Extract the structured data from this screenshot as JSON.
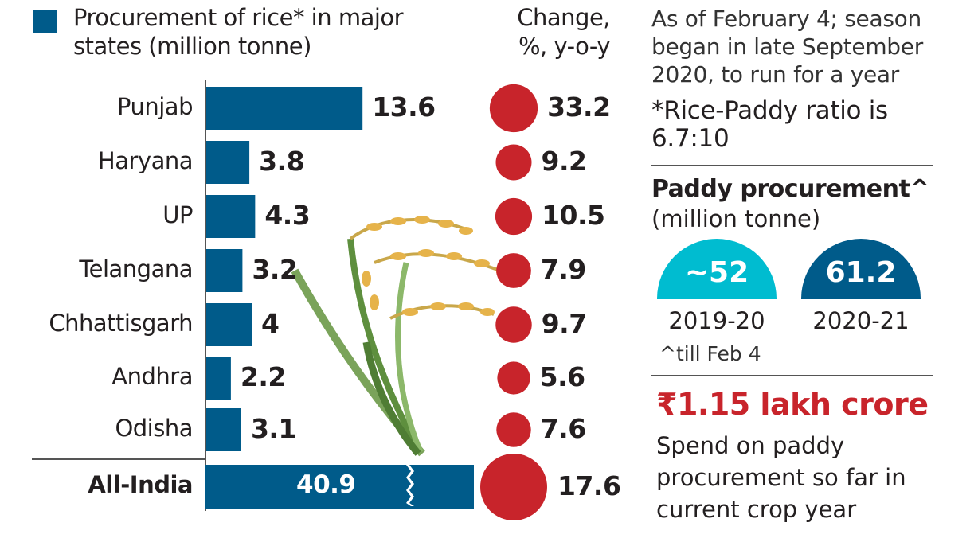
{
  "chart_data": {
    "type": "bar",
    "title": "Procurement of rice* in major states (million tonne)",
    "change_header": "Change, %, y-o-y",
    "categories": [
      "Punjab",
      "Haryana",
      "UP",
      "Telangana",
      "Chhattisgarh",
      "Andhra",
      "Odisha"
    ],
    "series": [
      {
        "name": "Procurement of rice* in major states (million tonne)",
        "values": [
          13.6,
          3.8,
          4.3,
          3.2,
          4,
          2.2,
          3.1
        ],
        "labels": [
          "13.6",
          "3.8",
          "4.3",
          "3.2",
          "4",
          "2.2",
          "3.1"
        ]
      },
      {
        "name": "Change, %, y-o-y",
        "values": [
          33.2,
          9.2,
          10.5,
          7.9,
          9.7,
          5.6,
          7.6
        ],
        "labels": [
          "33.2",
          "9.2",
          "10.5",
          "7.9",
          "9.7",
          "5.6",
          "7.6"
        ]
      }
    ],
    "total": {
      "label": "All-India",
      "value": 40.9,
      "value_label": "40.9",
      "change": 17.6,
      "change_label": "17.6",
      "axis_break": true
    },
    "colors": {
      "bar": "#005b8a",
      "circle": "#c8242b"
    }
  },
  "notes": {
    "season": "As of February 4; season began in late September 2020, to run for a year",
    "ratio": "*Rice-Paddy ratio is 6.7:10"
  },
  "paddy": {
    "title": "Paddy procurement^",
    "unit": "(million tonne)",
    "items": [
      {
        "year": "2019-20",
        "value": "~52",
        "color": "#00bcd0"
      },
      {
        "year": "2020-21",
        "value": "61.2",
        "color": "#005b8a"
      }
    ],
    "footnote": "^till Feb 4"
  },
  "spend": {
    "amount": "₹1.15 lakh crore",
    "caption": "Spend on paddy procurement so far in current crop year",
    "color": "#c8242b"
  }
}
